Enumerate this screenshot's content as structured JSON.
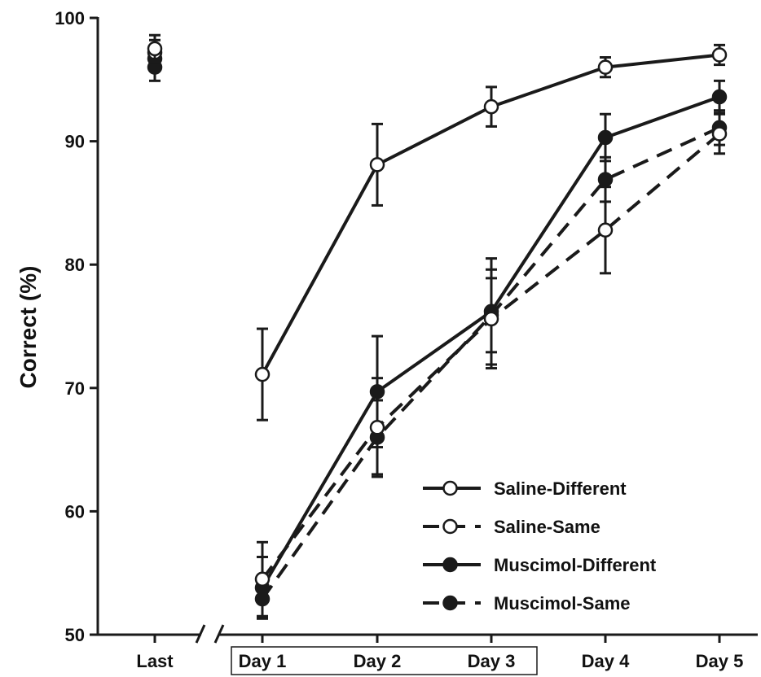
{
  "chart_data": {
    "type": "line",
    "title": "",
    "xlabel": "",
    "ylabel": "Correct (%)",
    "ylim": [
      50,
      100
    ],
    "yticks": [
      50,
      60,
      70,
      80,
      90,
      100
    ],
    "categories": [
      "Last",
      "Day 1",
      "Day 2",
      "Day 3",
      "Day 4",
      "Day 5"
    ],
    "boxed_categories": [
      "Day 1",
      "Day 2",
      "Day 3"
    ],
    "axis_break_between": [
      "Last",
      "Day 1"
    ],
    "grid": false,
    "legend_position": "bottom-right",
    "series": [
      {
        "name": "Saline-Different",
        "line": "solid",
        "marker": "open-circle",
        "color": "#1a1a1a",
        "values": [
          97.5,
          71.1,
          88.1,
          92.8,
          96.0,
          97.0
        ],
        "errors": [
          1.1,
          3.7,
          3.3,
          1.6,
          0.8,
          0.8
        ]
      },
      {
        "name": "Saline-Same",
        "line": "dashed",
        "marker": "open-circle",
        "color": "#1a1a1a",
        "values": [
          97.2,
          54.5,
          66.8,
          75.6,
          82.8,
          90.6
        ],
        "errors": [
          1.0,
          3.0,
          4.0,
          4.0,
          3.5,
          1.6
        ]
      },
      {
        "name": "Muscimol-Different",
        "line": "solid",
        "marker": "filled-circle",
        "color": "#1a1a1a",
        "values": [
          96.7,
          53.8,
          69.7,
          76.2,
          90.3,
          93.6
        ],
        "errors": [
          1.0,
          2.5,
          4.5,
          4.3,
          1.9,
          1.3
        ]
      },
      {
        "name": "Muscimol-Same",
        "line": "dashed",
        "marker": "filled-circle",
        "color": "#1a1a1a",
        "values": [
          96.0,
          52.9,
          66.0,
          75.9,
          86.9,
          91.1
        ],
        "errors": [
          1.1,
          1.5,
          3.0,
          3.0,
          1.8,
          1.4
        ]
      }
    ]
  }
}
